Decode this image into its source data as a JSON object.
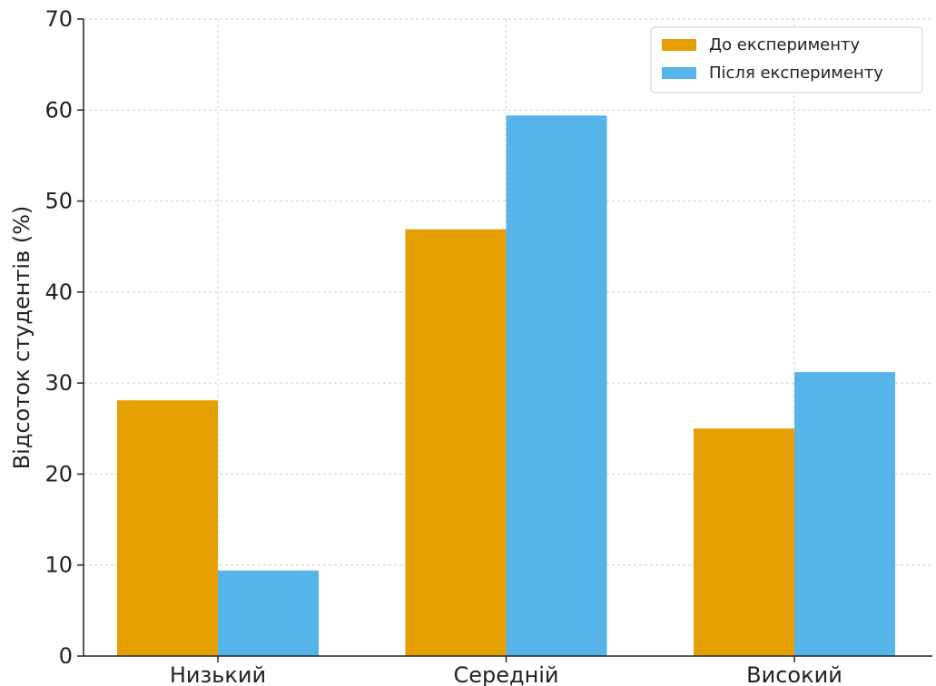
{
  "chart_data": {
    "type": "bar",
    "title": "",
    "xlabel": "",
    "ylabel": "Відсоток студентів (%)",
    "categories": [
      "Низький",
      "Середній",
      "Високий"
    ],
    "series": [
      {
        "name": "До експерименту",
        "values": [
          28.1,
          46.9,
          25.0
        ],
        "color": "#E69F00"
      },
      {
        "name": "Після експерименту",
        "values": [
          9.4,
          59.4,
          31.2
        ],
        "color": "#56B4E9"
      }
    ],
    "ylim": [
      0,
      70
    ],
    "yticks": [
      0,
      10,
      20,
      30,
      40,
      50,
      60,
      70
    ],
    "grid": true,
    "legend_position": "top-right"
  }
}
